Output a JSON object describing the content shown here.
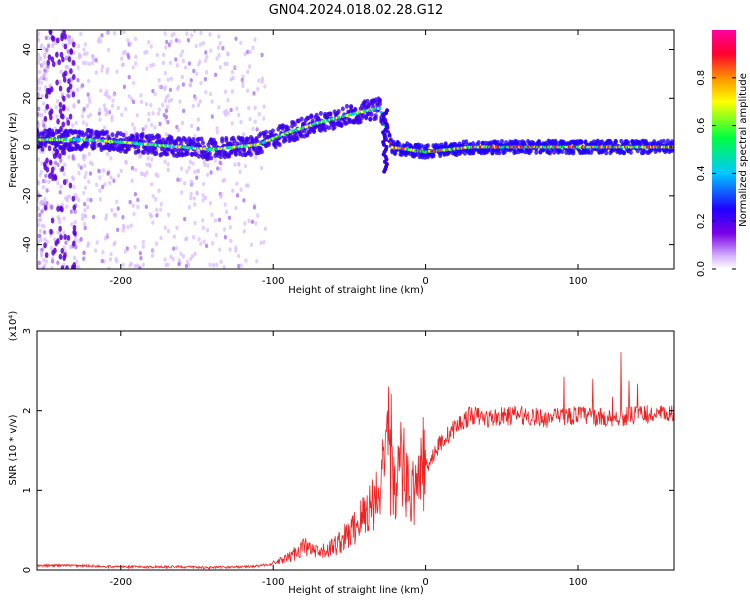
{
  "title": "GN04.2024.018.02.28.G12",
  "chart_data": [
    {
      "type": "heatmap",
      "xlabel": "Height of straight line (km)",
      "ylabel": "Frequency (Hz)",
      "xlim": [
        -255,
        163
      ],
      "ylim": [
        -50,
        48
      ],
      "xticks": [
        -200,
        -100,
        0,
        100
      ],
      "yticks": [
        -40,
        -20,
        0,
        20,
        40
      ],
      "colorbar": {
        "label": "Normalized spectral amplitude",
        "range": [
          0,
          1
        ],
        "ticks": [
          "0.0",
          "0.2",
          "0.4",
          "0.6",
          "0.8"
        ],
        "colormap": [
          "#c8a0ff",
          "#6000e0",
          "#0000ff",
          "#00c8ff",
          "#00ff60",
          "#ffff00",
          "#ff9000",
          "#ff0040",
          "#ff00a0"
        ]
      },
      "ridge": [
        {
          "x": -255,
          "y": 3
        },
        {
          "x": -220,
          "y": 3
        },
        {
          "x": -180,
          "y": 1
        },
        {
          "x": -140,
          "y": -1
        },
        {
          "x": -110,
          "y": 1
        },
        {
          "x": -90,
          "y": 6
        },
        {
          "x": -70,
          "y": 10
        },
        {
          "x": -45,
          "y": 14
        },
        {
          "x": -30,
          "y": 16
        },
        {
          "x": -22,
          "y": 0
        },
        {
          "x": 0,
          "y": -2
        },
        {
          "x": 30,
          "y": 0
        },
        {
          "x": 100,
          "y": 0
        },
        {
          "x": 163,
          "y": 0
        }
      ]
    },
    {
      "type": "line",
      "xlabel": "Height of straight line (km)",
      "ylabel": "SNR (10 * v/v)",
      "yscale_label": "(x10⁴)",
      "xlim": [
        -255,
        163
      ],
      "ylim": [
        0,
        3
      ],
      "xticks": [
        -200,
        -100,
        0,
        100
      ],
      "yticks": [
        0,
        1,
        2,
        3
      ],
      "color": "#ee2222",
      "series": [
        {
          "x": [
            -255,
            -240,
            -220,
            -200,
            -180,
            -160,
            -140,
            -120,
            -110,
            -100,
            -90,
            -80,
            -70,
            -60,
            -50,
            -40,
            -30,
            -25,
            -20,
            -15,
            -10,
            -5,
            0,
            10,
            20,
            30,
            40,
            60,
            80,
            100,
            120,
            140,
            163
          ],
          "values": [
            0.05,
            0.06,
            0.05,
            0.04,
            0.04,
            0.04,
            0.03,
            0.04,
            0.05,
            0.08,
            0.15,
            0.3,
            0.2,
            0.3,
            0.45,
            0.7,
            1.0,
            1.4,
            1.0,
            1.3,
            0.9,
            1.1,
            1.3,
            1.6,
            1.8,
            1.95,
            1.9,
            1.95,
            1.9,
            1.95,
            1.9,
            1.95,
            1.95
          ]
        }
      ]
    }
  ]
}
